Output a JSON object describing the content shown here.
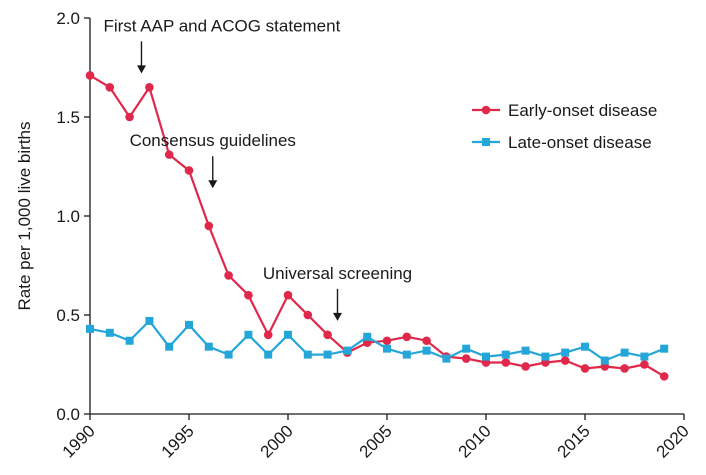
{
  "chart_data": {
    "type": "line",
    "title": "",
    "xlabel": "",
    "ylabel": "Rate per 1,000 live births",
    "xlim": [
      1990,
      2020
    ],
    "ylim": [
      0,
      2.0
    ],
    "x_ticks": [
      1990,
      1995,
      2000,
      2005,
      2010,
      2015,
      2020
    ],
    "y_ticks": [
      "0.0",
      "0.5",
      "1.0",
      "1.5",
      "2.0"
    ],
    "grid": false,
    "legend_position": "right",
    "x": [
      1990,
      1991,
      1992,
      1993,
      1994,
      1995,
      1996,
      1997,
      1998,
      1999,
      2000,
      2001,
      2002,
      2003,
      2004,
      2005,
      2006,
      2007,
      2008,
      2009,
      2010,
      2011,
      2012,
      2013,
      2014,
      2015,
      2016,
      2017,
      2018,
      2019
    ],
    "series": [
      {
        "name": "Early-onset disease",
        "color": "#e0284a",
        "marker": "circle",
        "values": [
          1.71,
          1.65,
          1.5,
          1.65,
          1.31,
          1.23,
          0.95,
          0.7,
          0.6,
          0.4,
          0.6,
          0.5,
          0.4,
          0.31,
          0.36,
          0.37,
          0.39,
          0.37,
          0.29,
          0.28,
          0.26,
          0.26,
          0.24,
          0.26,
          0.27,
          0.23,
          0.24,
          0.23,
          0.25,
          0.19
        ]
      },
      {
        "name": "Late-onset disease",
        "color": "#24a6d9",
        "marker": "square",
        "values": [
          0.43,
          0.41,
          0.37,
          0.47,
          0.34,
          0.45,
          0.34,
          0.3,
          0.4,
          0.3,
          0.4,
          0.3,
          0.3,
          0.32,
          0.39,
          0.33,
          0.3,
          0.32,
          0.28,
          0.33,
          0.29,
          0.3,
          0.32,
          0.29,
          0.31,
          0.34,
          0.27,
          0.31,
          0.29,
          0.33
        ]
      }
    ],
    "annotations": [
      {
        "text": "First AAP and ACOG statement",
        "x": 1992.6,
        "y": 1.68
      },
      {
        "text": "Consensus guidelines",
        "x": 1996.2,
        "y": 1.1
      },
      {
        "text": "Universal screening",
        "x": 2002.5,
        "y": 0.43
      }
    ]
  }
}
